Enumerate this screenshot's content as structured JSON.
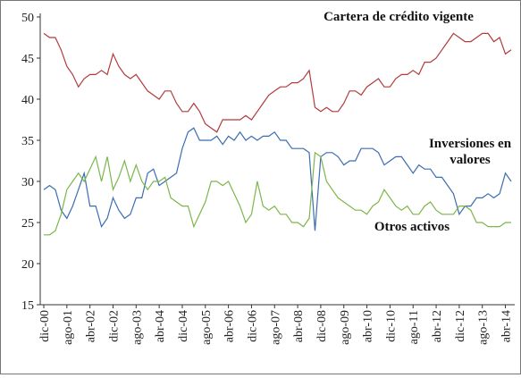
{
  "chart_data": {
    "type": "line",
    "categories": [
      "dic-00",
      null,
      null,
      null,
      "ago-01",
      null,
      null,
      null,
      "abr-02",
      null,
      null,
      null,
      "dic-02",
      null,
      null,
      null,
      "ago-03",
      null,
      null,
      null,
      "abr-04",
      null,
      null,
      null,
      "dic-04",
      null,
      null,
      null,
      "ago-05",
      null,
      null,
      null,
      "abr-06",
      null,
      null,
      null,
      "dic-06",
      null,
      null,
      null,
      "ago-07",
      null,
      null,
      null,
      "abr-08",
      null,
      null,
      null,
      "dic-08",
      null,
      null,
      null,
      "ago-09",
      null,
      null,
      null,
      "abr-10",
      null,
      null,
      null,
      "dic-10",
      null,
      null,
      null,
      "ago-11",
      null,
      null,
      null,
      "abr-12",
      null,
      null,
      null,
      "dic-12",
      null,
      null,
      null,
      "ago-13",
      null,
      null,
      null,
      "abr-14",
      null
    ],
    "ylim": [
      15,
      50
    ],
    "yticks": [
      15,
      20,
      25,
      30,
      35,
      40,
      45,
      50
    ],
    "grid": false,
    "series": [
      {
        "name": "Cartera de crédito vigente",
        "color": "#b23b3b",
        "values": [
          48,
          47.5,
          47.5,
          46,
          44,
          43,
          41.5,
          42.5,
          43,
          43,
          43.5,
          43,
          45.5,
          44,
          43,
          42.5,
          43,
          42,
          41,
          40.5,
          40,
          41,
          41,
          39.5,
          38.5,
          38.5,
          39.5,
          38.5,
          37,
          36.5,
          36,
          37.5,
          37.5,
          37.5,
          37.5,
          38,
          37.5,
          38.5,
          39.5,
          40.5,
          41,
          41.5,
          41.5,
          42,
          42,
          42.5,
          43.5,
          39,
          38.5,
          39,
          38.5,
          38.5,
          39.5,
          41,
          41,
          40.5,
          41.5,
          42,
          42.5,
          41.5,
          41.5,
          42.5,
          43,
          43,
          43.5,
          43,
          44.5,
          44.5,
          45,
          46,
          47,
          48,
          47.5,
          47,
          47,
          47.5,
          48,
          48,
          47,
          47.5,
          45.5,
          46
        ]
      },
      {
        "name": "Inversiones en valores",
        "color": "#3b6db3",
        "values": [
          29,
          29.5,
          29,
          26.5,
          25.5,
          27,
          29,
          31,
          27,
          27,
          24.5,
          25.5,
          28,
          26.5,
          25.5,
          26,
          28,
          28,
          31,
          31.5,
          29.5,
          30,
          30.5,
          31,
          34,
          36,
          36.5,
          35,
          35,
          35,
          35.5,
          34.5,
          35.5,
          35,
          36,
          35,
          35.5,
          35,
          35.5,
          35.5,
          36,
          35,
          35,
          34,
          34,
          34,
          33.5,
          24,
          33,
          33.5,
          33.5,
          33,
          32,
          32.5,
          32.5,
          34,
          34,
          34,
          33.5,
          32,
          32.5,
          33,
          33,
          32,
          31,
          32,
          31.5,
          31.5,
          30.5,
          30.5,
          29.5,
          28.5,
          26,
          27,
          27,
          28,
          28,
          28.5,
          28,
          28.5,
          31,
          30
        ]
      },
      {
        "name": "Otros activos",
        "color": "#7bb64a",
        "values": [
          23.5,
          23.5,
          24,
          26,
          29,
          30,
          31,
          30,
          31.5,
          33,
          30,
          33,
          29,
          30.5,
          32.5,
          30,
          32,
          30,
          29,
          30,
          30,
          30.5,
          28,
          27.5,
          27,
          27,
          24.5,
          26,
          27.5,
          30,
          30,
          29.5,
          30,
          28.5,
          27,
          25,
          26,
          30,
          27,
          26.5,
          27,
          26,
          26,
          25,
          25,
          24.5,
          25.5,
          33.5,
          33,
          30,
          29,
          28,
          27.5,
          27,
          26.5,
          26.5,
          26,
          27,
          27.5,
          29,
          28,
          27,
          26.5,
          27,
          26,
          26,
          27,
          27.5,
          26.5,
          26,
          26,
          26,
          27,
          27,
          26.5,
          25,
          25,
          24.5,
          24.5,
          24.5,
          25,
          25
        ]
      }
    ]
  }
}
